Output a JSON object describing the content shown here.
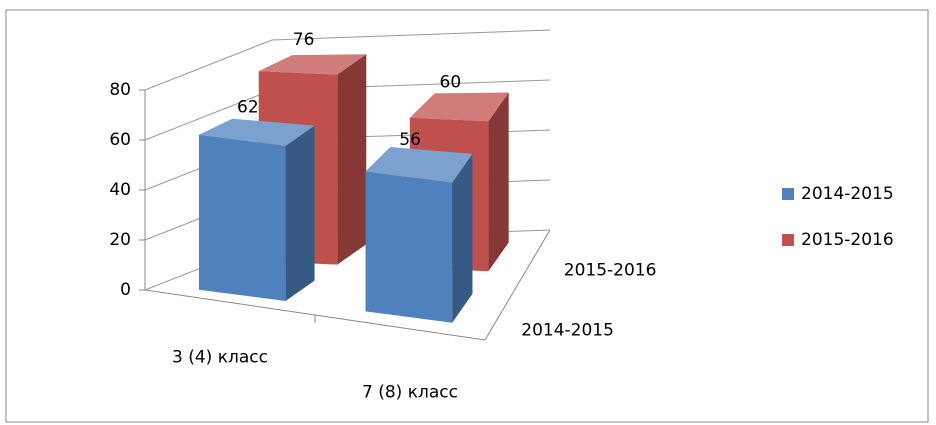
{
  "chart_data": {
    "type": "bar",
    "categories": [
      "3 (4) класс",
      "7 (8) класс"
    ],
    "series": [
      {
        "name": "2014-2015",
        "color": "#4f81bd",
        "values": [
          62,
          56
        ]
      },
      {
        "name": "2015-2016",
        "color": "#c0504d",
        "values": [
          76,
          60
        ]
      }
    ],
    "ylim": [
      0,
      80
    ],
    "yticks": [
      0,
      20,
      40,
      60,
      80
    ],
    "grid": true,
    "legend": "right"
  }
}
